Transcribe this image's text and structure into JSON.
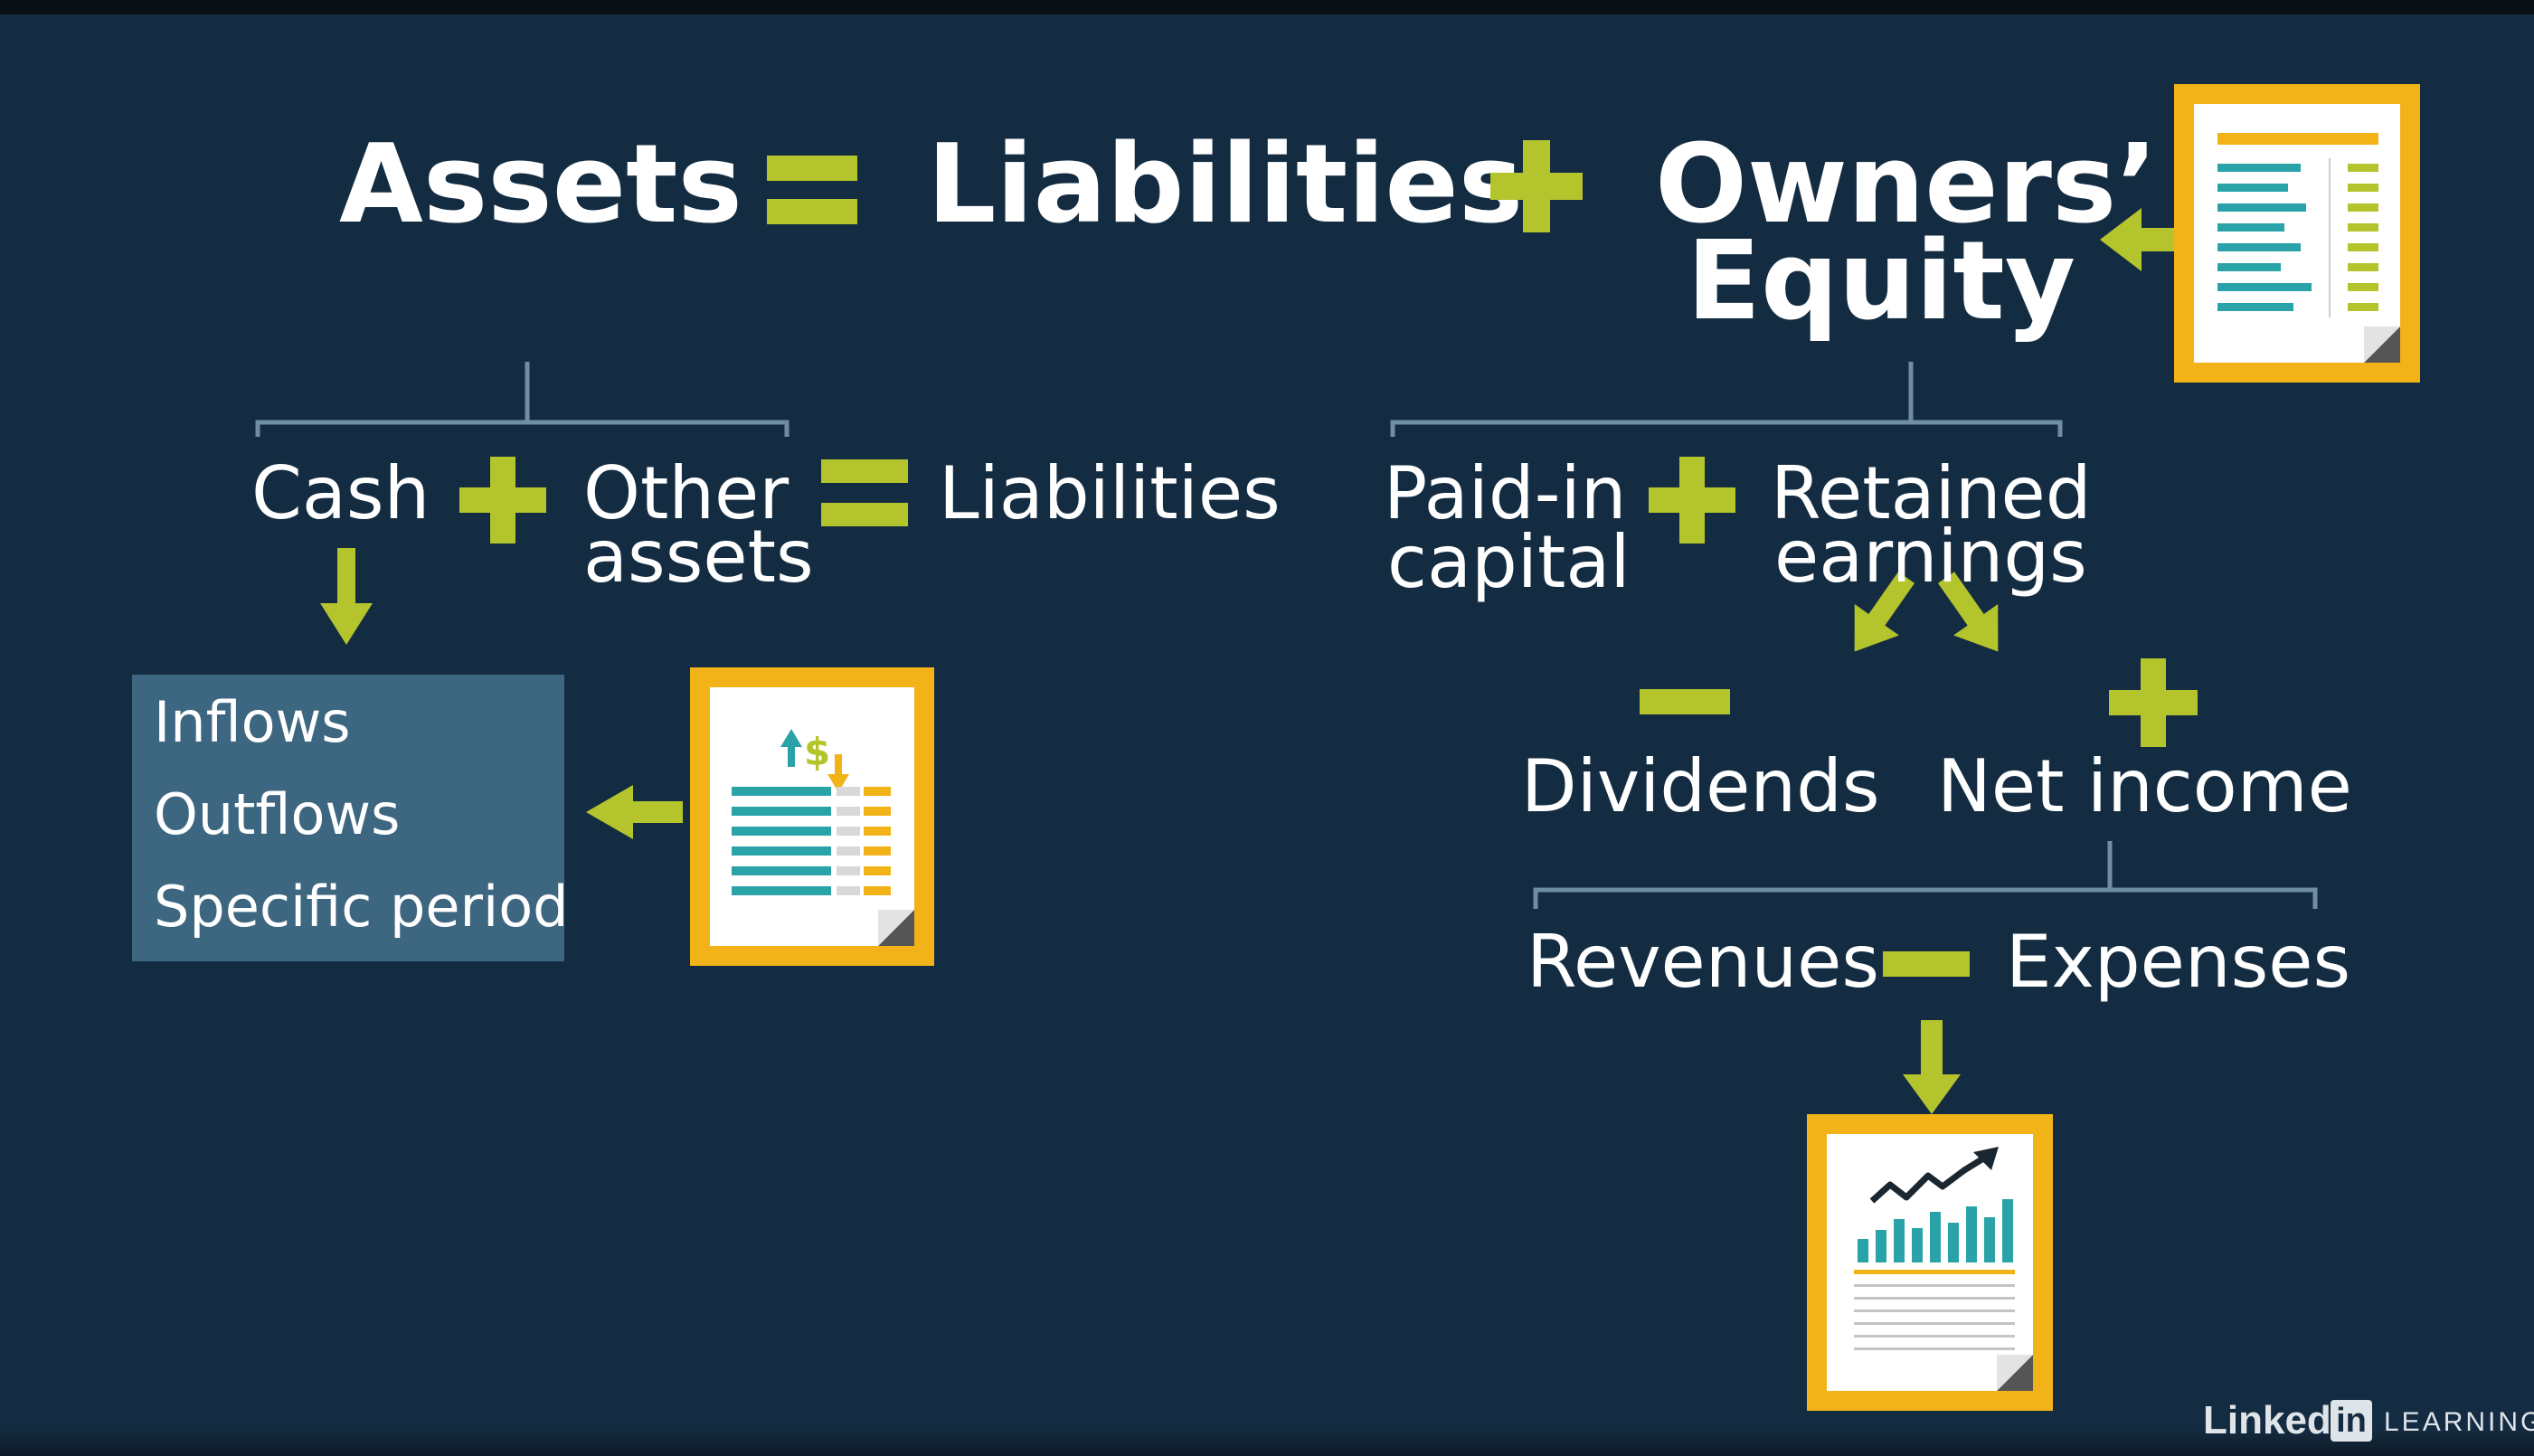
{
  "equation": {
    "assets": "Assets",
    "liabilities": "Liabilities",
    "owners_line1": "Owners’",
    "owners_line2": "Equity"
  },
  "assets_branch": {
    "cash": "Cash",
    "other_line1": "Other",
    "other_line2": "assets",
    "liabilities": "Liabilities"
  },
  "cash_flow_box": {
    "items": [
      "Inflows",
      "Outflows",
      "Specific period"
    ]
  },
  "equity_branch": {
    "paid_in_line1": "Paid-in",
    "paid_in_line2": "capital",
    "retained_line1": "Retained",
    "retained_line2": "earnings",
    "dividends": "Dividends",
    "net_income": "Net income",
    "revenues": "Revenues",
    "expenses": "Expenses"
  },
  "logo": {
    "linked": "Linked",
    "in": "in",
    "learning": "LEARNING"
  },
  "colors": {
    "background": "#142c42",
    "operator": "#b4c42c",
    "document_frame": "#f2b318",
    "box": "#3d6680",
    "line": "#6f8ea3"
  },
  "icons": [
    "balance-sheet-icon",
    "cash-flow-statement-icon",
    "income-statement-icon"
  ]
}
